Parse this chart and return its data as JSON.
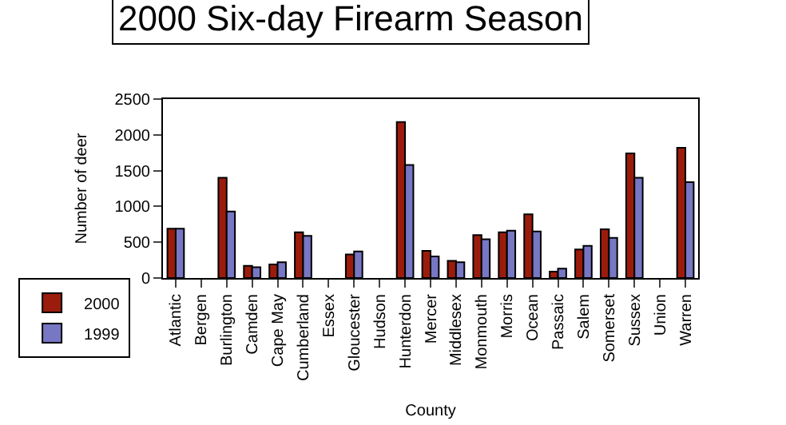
{
  "chart_data": {
    "type": "bar",
    "title": "2000 Six-day Firearm Season",
    "xlabel": "County",
    "ylabel": "Number of deer",
    "categories": [
      "Atlantic",
      "Bergen",
      "Burlington",
      "Camden",
      "Cape May",
      "Cumberland",
      "Essex",
      "Gloucester",
      "Hudson",
      "Hunterdon",
      "Mercer",
      "Middlesex",
      "Monmouth",
      "Morris",
      "Ocean",
      "Passaic",
      "Salem",
      "Somerset",
      "Sussex",
      "Union",
      "Warren"
    ],
    "series": [
      {
        "name": "2000",
        "color": "#9b1c0c",
        "values": [
          690,
          null,
          1400,
          170,
          190,
          640,
          null,
          330,
          null,
          2180,
          380,
          240,
          600,
          640,
          890,
          90,
          400,
          680,
          1740,
          null,
          1820
        ]
      },
      {
        "name": "1999",
        "color": "#7777c4",
        "values": [
          690,
          null,
          930,
          150,
          220,
          590,
          null,
          370,
          null,
          1580,
          300,
          220,
          540,
          660,
          650,
          130,
          450,
          560,
          1400,
          null,
          1340
        ]
      }
    ],
    "ylim": [
      0,
      2500
    ],
    "yticks": [
      0,
      500,
      1000,
      1500,
      2000,
      2500
    ],
    "grid": false,
    "legend": "left"
  }
}
